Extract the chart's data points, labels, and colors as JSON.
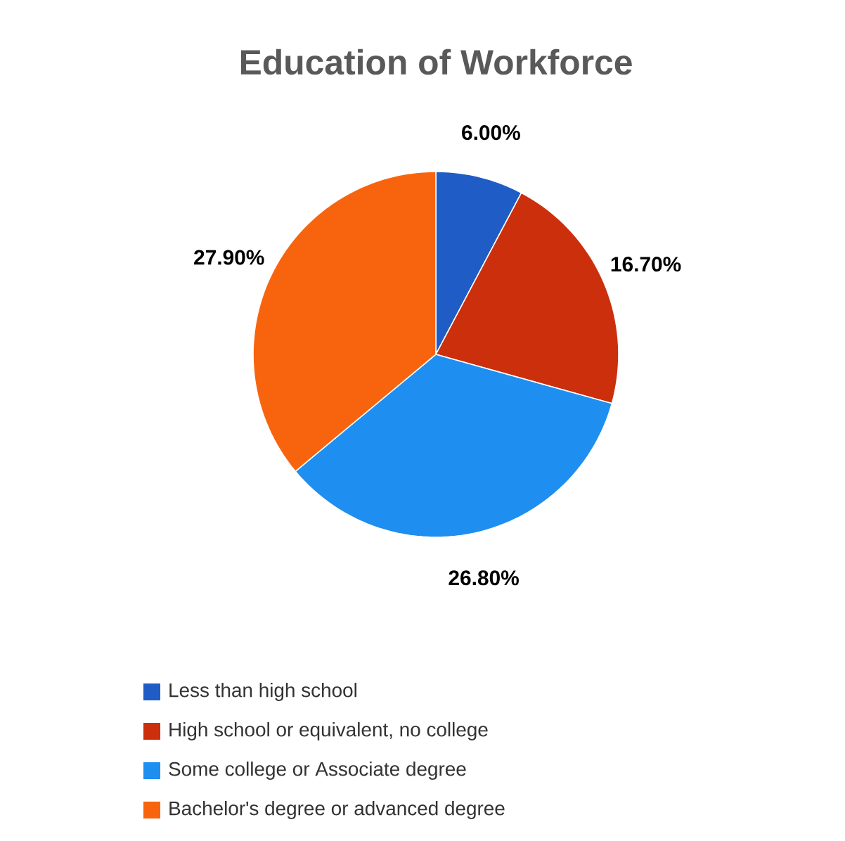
{
  "chart_data": {
    "type": "pie",
    "title": "Education of Workforce",
    "categories": [
      "Less than high school",
      "High school or equivalent, no college",
      "Some college or Associate degree",
      "Bachelor's degree or advanced degree"
    ],
    "values": [
      6.0,
      16.7,
      26.8,
      27.9
    ],
    "value_labels": [
      "6.00%",
      "16.70%",
      "26.80%",
      "27.90%"
    ],
    "colors": [
      "#1f5cc6",
      "#cc2f0c",
      "#1e8ff0",
      "#f8640e"
    ],
    "legend": "bottom"
  }
}
